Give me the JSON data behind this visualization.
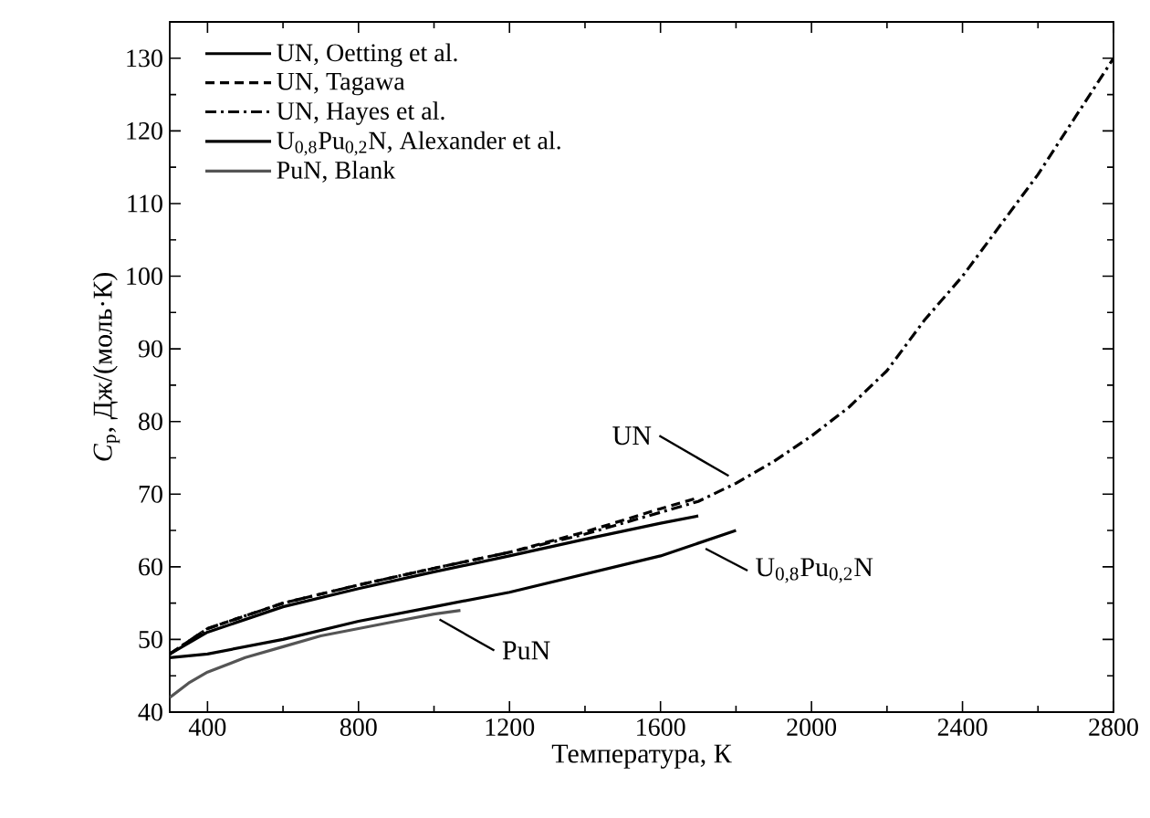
{
  "chart_data": {
    "type": "line",
    "xlabel": "Температура, К",
    "ylabel": "*C*$_{p}$, Дж/(моль·К)",
    "xlim": [
      300,
      2800
    ],
    "xticks": [
      400,
      800,
      1200,
      1600,
      2000,
      2400,
      2800
    ],
    "ylim": [
      40,
      135
    ],
    "yticks": [
      40,
      50,
      60,
      70,
      80,
      90,
      100,
      110,
      120,
      130
    ],
    "legend": "top left",
    "grid": false,
    "series": [
      {
        "name": "UN, Oetting et al.",
        "color": "#000000",
        "line_style": "solid",
        "x": [
          300,
          400,
          600,
          800,
          1000,
          1200,
          1400,
          1600,
          1700
        ],
        "values": [
          48,
          51,
          54.5,
          57,
          59.3,
          61.5,
          63.8,
          66,
          67
        ]
      },
      {
        "name": "UN, Tagawa",
        "color": "#000000",
        "line_style": "dashed",
        "x": [
          300,
          400,
          600,
          800,
          1000,
          1200,
          1400,
          1600,
          1700
        ],
        "values": [
          48,
          51.5,
          55,
          57.5,
          59.8,
          62,
          64.8,
          68,
          69.5
        ]
      },
      {
        "name": "UN, Hayes et al.",
        "color": "#000000",
        "line_style": "dashdot",
        "x": [
          300,
          400,
          600,
          800,
          1000,
          1200,
          1400,
          1600,
          1700,
          1800,
          1900,
          2000,
          2100,
          2200,
          2300,
          2400,
          2500,
          2600,
          2700,
          2800
        ],
        "values": [
          48,
          51.5,
          55,
          57.5,
          59.8,
          62,
          64.5,
          67.5,
          69,
          71.5,
          74.5,
          78,
          82,
          87,
          94,
          100,
          107,
          114,
          122,
          130
        ]
      },
      {
        "name": "U$_{0,8}$Pu$_{0,2}$N, Alexander et al.",
        "color": "#000000",
        "line_style": "solid",
        "x": [
          300,
          400,
          600,
          800,
          1000,
          1200,
          1400,
          1600,
          1800
        ],
        "values": [
          47.5,
          48,
          50,
          52.5,
          54.5,
          56.5,
          59,
          61.5,
          65
        ]
      },
      {
        "name": "PuN, Blank",
        "color": "#555555",
        "line_style": "solid",
        "x": [
          300,
          350,
          400,
          500,
          600,
          700,
          800,
          900,
          1000,
          1070
        ],
        "values": [
          42,
          44,
          45.5,
          47.5,
          49,
          50.5,
          51.5,
          52.5,
          53.5,
          54
        ]
      }
    ],
    "annotations": [
      {
        "text": "UN",
        "x": 1800,
        "y": 71.5
      },
      {
        "text": "U$_{0,8}$Pu$_{0,2}$N",
        "x": 1700,
        "y": 63.5
      },
      {
        "text": "PuN",
        "x": 1000,
        "y": 53.5
      }
    ]
  }
}
